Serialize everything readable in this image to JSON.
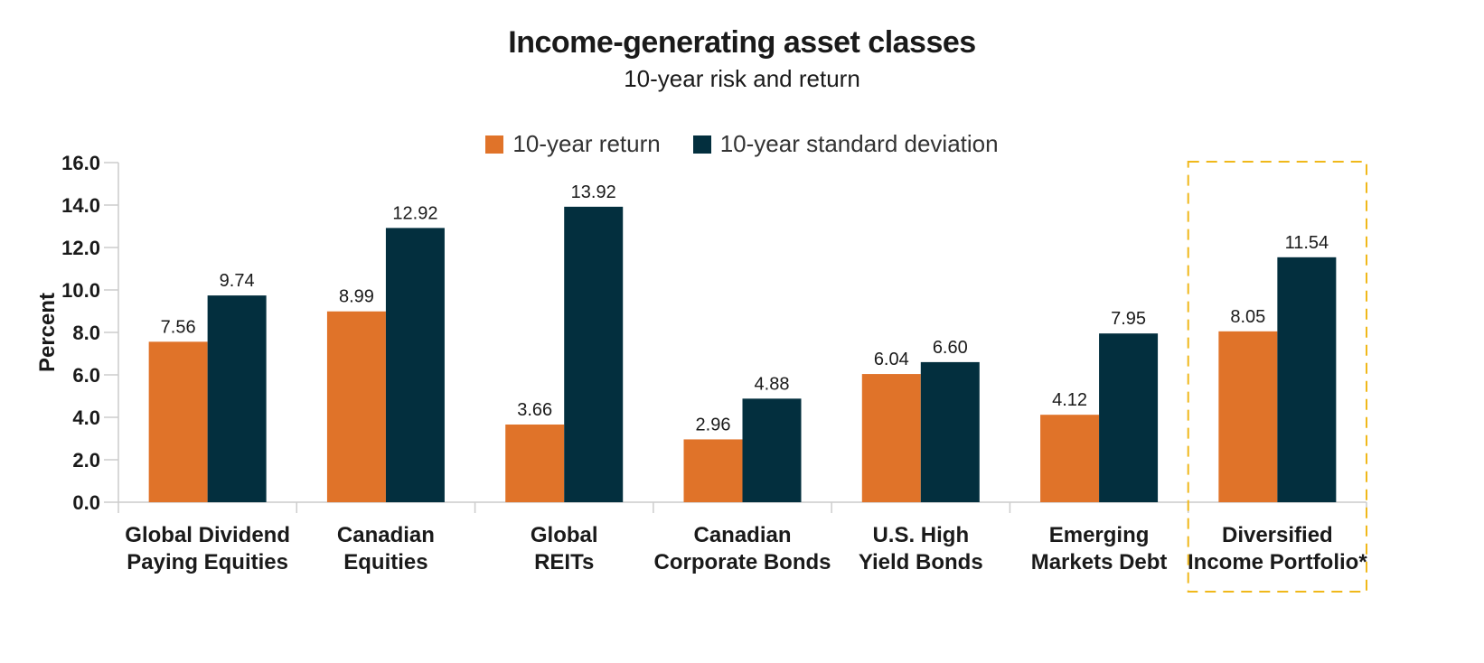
{
  "header": {
    "title": "Income-generating asset classes",
    "subtitle": "10-year risk and return"
  },
  "legend": [
    {
      "label": "10-year return",
      "color": "#e07329"
    },
    {
      "label": "10-year standard deviation",
      "color": "#032f3e"
    }
  ],
  "highlight_color": "#f0b81a",
  "chart_data": {
    "type": "bar",
    "title": "Income-generating asset classes",
    "subtitle": "10-year risk and return",
    "xlabel": "",
    "ylabel": "Percent",
    "ylim": [
      0,
      16
    ],
    "yticks": [
      "0.0",
      "2.0",
      "4.0",
      "6.0",
      "8.0",
      "10.0",
      "12.0",
      "14.0",
      "16.0"
    ],
    "grid": false,
    "legend_position": "top",
    "categories": [
      [
        "Global Dividend",
        "Paying Equities"
      ],
      [
        "Canadian",
        "Equities"
      ],
      [
        "Global",
        "REITs"
      ],
      [
        "Canadian",
        "Corporate Bonds"
      ],
      [
        "U.S. High",
        "Yield Bonds"
      ],
      [
        "Emerging",
        "Markets Debt"
      ],
      [
        "Diversified",
        "Income Portfolio*"
      ]
    ],
    "series": [
      {
        "name": "10-year return",
        "color": "#e07329",
        "values": [
          7.56,
          8.99,
          3.66,
          2.96,
          6.04,
          4.12,
          8.05
        ],
        "labels": [
          "7.56",
          "8.99",
          "3.66",
          "2.96",
          "6.04",
          "4.12",
          "8.05"
        ]
      },
      {
        "name": "10-year standard deviation",
        "color": "#032f3e",
        "values": [
          9.74,
          12.92,
          13.92,
          4.88,
          6.6,
          7.95,
          11.54
        ],
        "labels": [
          "9.74",
          "12.92",
          "13.92",
          "4.88",
          "6.60",
          "7.95",
          "11.54"
        ]
      }
    ],
    "annotations": [
      "Dashed highlight box around Diversified Income Portfolio*"
    ]
  }
}
